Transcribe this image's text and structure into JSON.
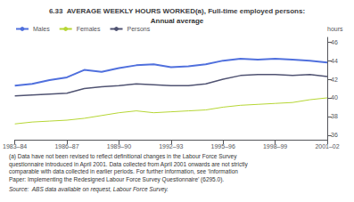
{
  "chart_data": {
    "type": "line",
    "title": "6.33  AVERAGE WEEKLY HOURS WORKED(a), Full-time employed persons:",
    "subtitle": "Annual average",
    "ylabel": "hours",
    "categories": [
      "1983–84",
      null,
      null,
      "1986–87",
      null,
      null,
      "1989–90",
      null,
      null,
      "1992–93",
      null,
      null,
      "1995–96",
      null,
      null,
      "1998–99",
      null,
      null,
      "2001–02"
    ],
    "series": [
      {
        "name": "Males",
        "values": [
          41.3,
          41.5,
          41.9,
          42.2,
          43.0,
          42.8,
          43.2,
          43.5,
          43.6,
          43.3,
          43.4,
          43.6,
          44.0,
          44.2,
          44.1,
          44.2,
          44.1,
          44.0,
          43.8
        ]
      },
      {
        "name": "Females",
        "values": [
          37.2,
          37.4,
          37.5,
          37.6,
          37.8,
          38.1,
          38.4,
          38.6,
          38.4,
          38.5,
          38.6,
          38.7,
          39.0,
          39.2,
          39.3,
          39.4,
          39.5,
          39.8,
          40.0
        ]
      },
      {
        "name": "Persons",
        "values": [
          40.2,
          40.3,
          40.4,
          40.5,
          41.0,
          41.2,
          41.3,
          41.5,
          41.4,
          41.3,
          41.3,
          41.5,
          42.0,
          42.4,
          42.5,
          42.5,
          42.4,
          42.5,
          42.3
        ]
      }
    ],
    "ylim": [
      35.5,
      46.5
    ],
    "yticks": [
      36,
      38,
      40,
      42,
      44,
      46
    ],
    "grid": false,
    "legend": "upper left",
    "annotations": [
      "(a) Data have not been revised to reflect definitional changes in the Labour Force Survey",
      "questionnaire introduced in April 2001. Data collected from April 2001 onwards are not strictly",
      "comparable with data collected in earlier periods. For further information, see ‘Information",
      "Paper: Implementing the Redesigned Labour Force Survey Questionnaire’ (6295.0).",
      "Source:  ABS data available on request, Labour Force Survey."
    ]
  }
}
